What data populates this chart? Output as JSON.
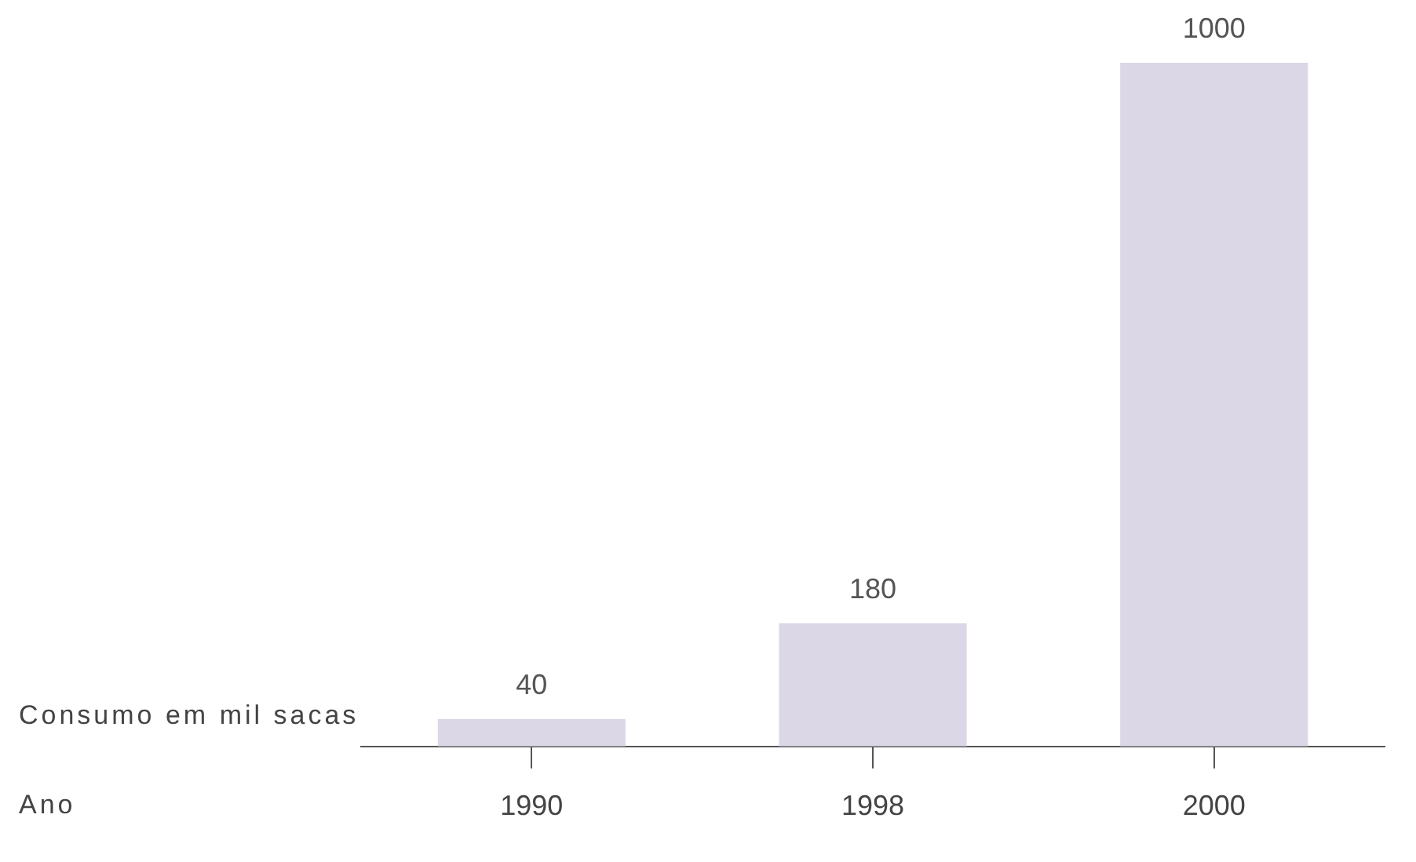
{
  "chart_data": {
    "type": "bar",
    "categories": [
      "1990",
      "1998",
      "2000"
    ],
    "values": [
      40,
      180,
      1000
    ],
    "color": "#dcd7e6",
    "data_labels": true,
    "ylabel": "Consumo em mil sacas",
    "annotations": [
      "Ano"
    ],
    "grid": false,
    "legend": false,
    "tick_labels": "x"
  }
}
